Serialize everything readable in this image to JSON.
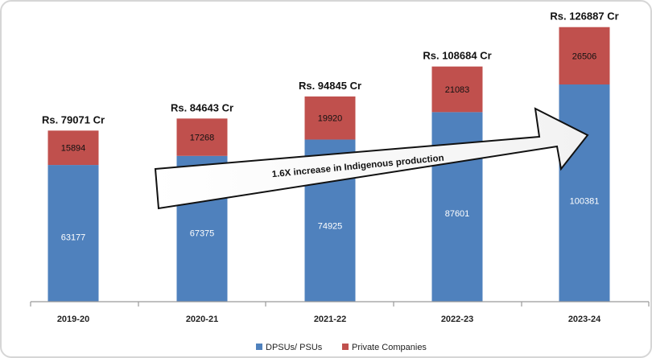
{
  "chart_data": {
    "type": "bar",
    "stacked": true,
    "categories": [
      "2019-20",
      "2020-21",
      "2021-22",
      "2022-23",
      "2023-24"
    ],
    "series": [
      {
        "name": "DPSUs/ PSUs",
        "values": [
          63177,
          67375,
          74925,
          87601,
          100381
        ],
        "color": "#4f81bd"
      },
      {
        "name": "Private Companies",
        "values": [
          15894,
          17268,
          19920,
          21083,
          26506
        ],
        "color": "#c0504d"
      }
    ],
    "totals": [
      "Rs. 79071 Cr",
      "Rs. 84643 Cr",
      "Rs. 94845 Cr",
      "Rs. 108684 Cr",
      "Rs. 126887 Cr"
    ],
    "ylim": [
      0,
      140000
    ],
    "annotation": "1.6X increase in Indigenous production",
    "legend_position": "bottom-center",
    "grid": false
  }
}
